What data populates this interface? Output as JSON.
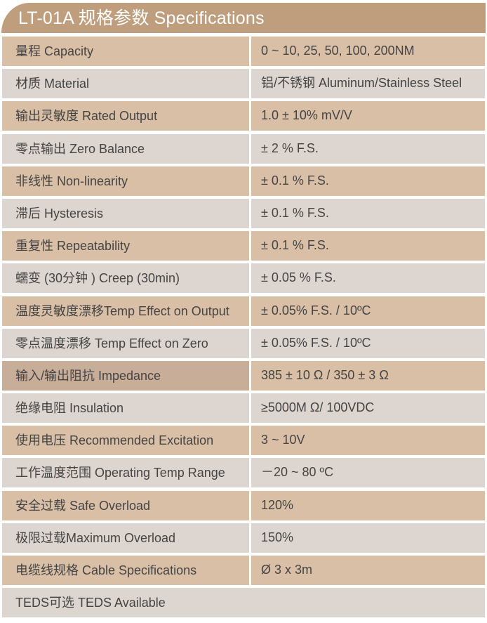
{
  "title": "LT-01A 规格参数 Specifications",
  "colors": {
    "header": "#bf9e7e",
    "row_tan": "#d9bfa6",
    "row_gray": "#ddd6d0",
    "text": "#444444"
  },
  "rows": [
    {
      "label": "量程 Capacity",
      "value": "0 ~ 10, 25, 50, 100, 200NM"
    },
    {
      "label": "材质 Material",
      "value": "铝/不锈钢 Aluminum/Stainless Steel"
    },
    {
      "label": "输出灵敏度 Rated Output",
      "value": "1.0  ±  10% mV/V"
    },
    {
      "label": "零点输出  Zero Balance",
      "value": "± 2 % F.S."
    },
    {
      "label": "非线性 Non-linearity",
      "value": "± 0.1 % F.S."
    },
    {
      "label": "滞后 Hysteresis",
      "value": "± 0.1 % F.S."
    },
    {
      "label": "重复性 Repeatability",
      "value": "± 0.1 % F.S."
    },
    {
      "label": "蠕变 (30分钟 ) Creep (30min)",
      "value": "± 0.05 % F.S."
    },
    {
      "label": "温度灵敏度漂移Temp Effect on Output",
      "value": "± 0.05% F.S. / 10ºC"
    },
    {
      "label": "零点温度漂移 Temp Effect on Zero",
      "value": "± 0.05% F.S. / 10ºC"
    },
    {
      "label": "输入/输出阻抗 Impedance",
      "value": "385 ± 10 Ω  / 350 ± 3 Ω"
    },
    {
      "label": "绝缘电阻  Insulation",
      "value": "≥5000M Ω/ 100VDC"
    },
    {
      "label": "使用电压 Recommended Excitation",
      "value": "3 ~ 10V"
    },
    {
      "label": "工作温度范围 Operating Temp  Range",
      "value": "－20 ~ 80 ºC"
    },
    {
      "label": "安全过载 Safe Overload",
      "value": "120%"
    },
    {
      "label": "极限过载Maximum Overload",
      "value": "150%"
    },
    {
      "label": "电缆线规格 Cable Specifications",
      "value": "Ø 3 x 3m"
    },
    {
      "label": "TEDS可选 TEDS Available"
    }
  ]
}
